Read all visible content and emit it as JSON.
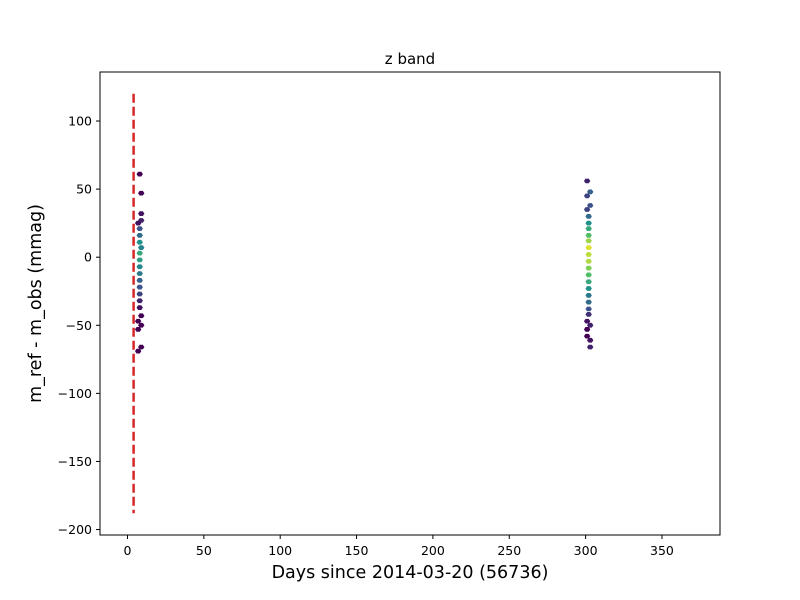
{
  "chart_data": {
    "type": "scatter",
    "title": "z band",
    "xlabel": "Days since 2014-03-20 (56736)",
    "ylabel": "m_ref - m_obs (mmag)",
    "xlim": [
      -18,
      388
    ],
    "ylim": [
      -204,
      136
    ],
    "xticks": [
      0,
      50,
      100,
      150,
      200,
      250,
      300,
      350
    ],
    "yticks": [
      -200,
      -150,
      -100,
      -50,
      0,
      50,
      100
    ],
    "yticks_text": [
      "−200",
      "−150",
      "−100",
      "−50",
      "0",
      "50",
      "100"
    ],
    "grid": false,
    "reference_line": {
      "x": 4,
      "y_range": [
        -188,
        120
      ],
      "color": "#d62728",
      "style": "dashed"
    },
    "hexbin_counts_colormap": "viridis",
    "points": [
      {
        "x": 8,
        "y": 61,
        "level": 0.0
      },
      {
        "x": 9,
        "y": 47,
        "level": 0.0
      },
      {
        "x": 9,
        "y": 32,
        "level": 0.05
      },
      {
        "x": 9,
        "y": 27,
        "level": 0.1
      },
      {
        "x": 7,
        "y": 25,
        "level": 0.05
      },
      {
        "x": 8,
        "y": 21,
        "level": 0.25
      },
      {
        "x": 8,
        "y": 16,
        "level": 0.35
      },
      {
        "x": 8,
        "y": 11,
        "level": 0.5
      },
      {
        "x": 9,
        "y": 7,
        "level": 0.45
      },
      {
        "x": 8,
        "y": 3,
        "level": 0.6
      },
      {
        "x": 8,
        "y": -2,
        "level": 0.55
      },
      {
        "x": 8,
        "y": -7,
        "level": 0.45
      },
      {
        "x": 8,
        "y": -12,
        "level": 0.4
      },
      {
        "x": 8,
        "y": -17,
        "level": 0.3
      },
      {
        "x": 8,
        "y": -22,
        "level": 0.25
      },
      {
        "x": 8,
        "y": -27,
        "level": 0.2
      },
      {
        "x": 8,
        "y": -32,
        "level": 0.1
      },
      {
        "x": 8,
        "y": -37,
        "level": 0.05
      },
      {
        "x": 9,
        "y": -43,
        "level": 0.0
      },
      {
        "x": 7,
        "y": -47,
        "level": 0.0
      },
      {
        "x": 9,
        "y": -50,
        "level": 0.0
      },
      {
        "x": 7,
        "y": -53,
        "level": 0.0
      },
      {
        "x": 9,
        "y": -66,
        "level": 0.0
      },
      {
        "x": 7,
        "y": -69,
        "level": 0.0
      },
      {
        "x": 301,
        "y": 56,
        "level": 0.1
      },
      {
        "x": 303,
        "y": 48,
        "level": 0.3
      },
      {
        "x": 301,
        "y": 45,
        "level": 0.2
      },
      {
        "x": 303,
        "y": 38,
        "level": 0.25
      },
      {
        "x": 301,
        "y": 35,
        "level": 0.2
      },
      {
        "x": 302,
        "y": 30,
        "level": 0.35
      },
      {
        "x": 302,
        "y": 25,
        "level": 0.5
      },
      {
        "x": 302,
        "y": 21,
        "level": 0.6
      },
      {
        "x": 302,
        "y": 16,
        "level": 0.7
      },
      {
        "x": 302,
        "y": 12,
        "level": 0.85
      },
      {
        "x": 302,
        "y": 7,
        "level": 0.95
      },
      {
        "x": 302,
        "y": 2,
        "level": 0.9
      },
      {
        "x": 302,
        "y": -3,
        "level": 0.88
      },
      {
        "x": 302,
        "y": -8,
        "level": 0.8
      },
      {
        "x": 302,
        "y": -13,
        "level": 0.7
      },
      {
        "x": 302,
        "y": -18,
        "level": 0.6
      },
      {
        "x": 302,
        "y": -23,
        "level": 0.5
      },
      {
        "x": 302,
        "y": -28,
        "level": 0.4
      },
      {
        "x": 302,
        "y": -33,
        "level": 0.35
      },
      {
        "x": 302,
        "y": -38,
        "level": 0.25
      },
      {
        "x": 302,
        "y": -42,
        "level": 0.15
      },
      {
        "x": 301,
        "y": -47,
        "level": 0.05
      },
      {
        "x": 303,
        "y": -50,
        "level": 0.1
      },
      {
        "x": 301,
        "y": -53,
        "level": 0.0
      },
      {
        "x": 301,
        "y": -58,
        "level": 0.0
      },
      {
        "x": 303,
        "y": -61,
        "level": 0.05
      },
      {
        "x": 303,
        "y": -66,
        "level": 0.1
      }
    ]
  }
}
